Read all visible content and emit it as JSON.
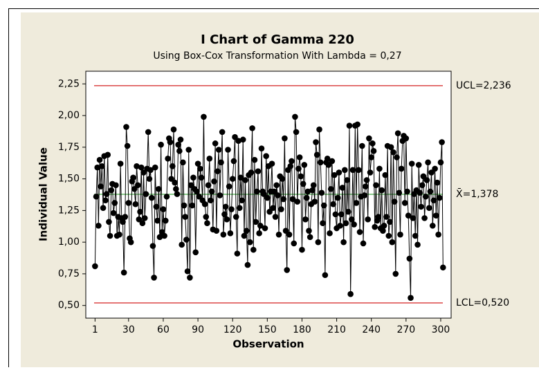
{
  "chart_data": {
    "type": "line",
    "title": "I Chart of Gamma 220",
    "subtitle": "Using Box-Cox Transformation With Lambda = 0,27",
    "xlabel": "Observation",
    "ylabel": "Individual Value",
    "xlim": [
      -7,
      309
    ],
    "xticks": [
      1,
      30,
      60,
      90,
      120,
      150,
      180,
      210,
      240,
      270,
      300
    ],
    "ylim": [
      0.4,
      2.35
    ],
    "yticks": [
      {
        "value": 0.5,
        "label": "0,50"
      },
      {
        "value": 0.75,
        "label": "0,75"
      },
      {
        "value": 1.0,
        "label": "1,00"
      },
      {
        "value": 1.25,
        "label": "1,25"
      },
      {
        "value": 1.5,
        "label": "1,50"
      },
      {
        "value": 1.75,
        "label": "1,75"
      },
      {
        "value": 2.0,
        "label": "2,00"
      },
      {
        "value": 2.25,
        "label": "2,25"
      }
    ],
    "control_lines": [
      {
        "value": 2.236,
        "label": "UCL=2,236",
        "color": "#d42020"
      },
      {
        "value": 1.378,
        "label": "X̄=1,378",
        "color": "#2ca02c"
      },
      {
        "value": 0.52,
        "label": "LCL=0,520",
        "color": "#d42020"
      }
    ],
    "color": "#000000",
    "values": [
      0.81,
      1.36,
      1.59,
      1.13,
      1.65,
      1.44,
      1.6,
      1.27,
      1.68,
      1.33,
      1.38,
      1.69,
      1.16,
      1.05,
      1.41,
      1.46,
      1.23,
      1.31,
      1.45,
      1.05,
      1.2,
      1.06,
      1.62,
      1.19,
      1.16,
      0.76,
      1.2,
      1.91,
      1.76,
      1.31,
      1.03,
      1.0,
      1.48,
      1.51,
      1.42,
      1.3,
      1.6,
      1.45,
      1.18,
      1.24,
      1.59,
      1.15,
      1.55,
      1.19,
      1.38,
      1.58,
      1.87,
      1.5,
      1.57,
      1.35,
      0.97,
      0.72,
      1.59,
      1.28,
      1.17,
      1.42,
      1.04,
      1.77,
      1.08,
      1.26,
      1.05,
      1.17,
      1.36,
      1.66,
      1.82,
      1.79,
      1.5,
      1.6,
      1.89,
      1.47,
      1.42,
      1.38,
      1.77,
      1.72,
      1.81,
      0.98,
      1.63,
      1.29,
      1.2,
      1.02,
      0.77,
      1.73,
      0.72,
      1.45,
      1.29,
      1.51,
      1.42,
      0.92,
      1.4,
      1.62,
      1.36,
      1.58,
      1.51,
      1.33,
      1.99,
      1.3,
      1.2,
      1.15,
      1.45,
      1.66,
      1.33,
      1.4,
      1.1,
      1.48,
      1.78,
      1.09,
      1.56,
      1.73,
      1.37,
      1.63,
      1.87,
      1.06,
      1.22,
      1.28,
      1.18,
      1.73,
      1.44,
      1.07,
      1.26,
      1.5,
      1.64,
      1.83,
      1.2,
      0.91,
      1.8,
      1.27,
      1.51,
      1.33,
      1.81,
      1.05,
      1.49,
      1.09,
      0.82,
      1.53,
      1.0,
      1.55,
      1.9,
      0.94,
      1.65,
      1.16,
      1.4,
      1.56,
      1.07,
      1.13,
      1.74,
      1.4,
      1.38,
      1.11,
      1.68,
      1.35,
      1.6,
      1.24,
      1.4,
      1.62,
      1.27,
      1.4,
      1.2,
      1.45,
      1.37,
      1.06,
      1.52,
      1.26,
      1.5,
      1.34,
      1.82,
      1.09,
      0.78,
      1.57,
      1.06,
      1.6,
      1.64,
      1.34,
      0.99,
      1.99,
      1.87,
      1.32,
      1.58,
      1.67,
      1.52,
      0.94,
      1.46,
      1.61,
      1.18,
      1.35,
      1.4,
      1.09,
      1.04,
      1.3,
      1.41,
      1.45,
      1.32,
      1.79,
      1.69,
      1.0,
      1.89,
      1.63,
      1.39,
      1.15,
      1.29,
      0.74,
      1.63,
      1.66,
      1.61,
      1.07,
      1.42,
      1.64,
      1.3,
      1.53,
      1.22,
      1.11,
      1.35,
      1.55,
      1.13,
      1.22,
      1.43,
      1.0,
      1.57,
      1.15,
      1.49,
      1.24,
      1.92,
      0.59,
      1.18,
      1.57,
      1.14,
      1.92,
      1.31,
      1.93,
      1.57,
      1.08,
      1.36,
      1.76,
      0.99,
      1.37,
      1.44,
      1.49,
      1.18,
      1.82,
      1.55,
      1.67,
      1.78,
      1.72,
      1.12,
      1.45,
      1.17,
      1.2,
      1.58,
      1.11,
      1.41,
      1.09,
      1.13,
      1.53,
      1.2,
      1.76,
      1.05,
      1.16,
      1.75,
      1.0,
      1.71,
      1.32,
      0.75,
      1.67,
      1.86,
      1.39,
      1.06,
      1.58,
      1.8,
      1.84,
      1.31,
      1.82,
      1.4,
      1.21,
      0.87,
      0.56,
      1.62,
      1.19,
      1.38,
      1.05,
      1.41,
      0.98,
      1.61,
      1.39,
      1.28,
      1.45,
      1.52,
      1.19,
      1.36,
      1.49,
      1.63,
      1.27,
      1.4,
      1.55,
      1.13,
      1.33,
      1.58,
      1.21,
      1.47,
      1.06,
      1.35,
      1.63,
      1.79,
      0.8
    ]
  }
}
